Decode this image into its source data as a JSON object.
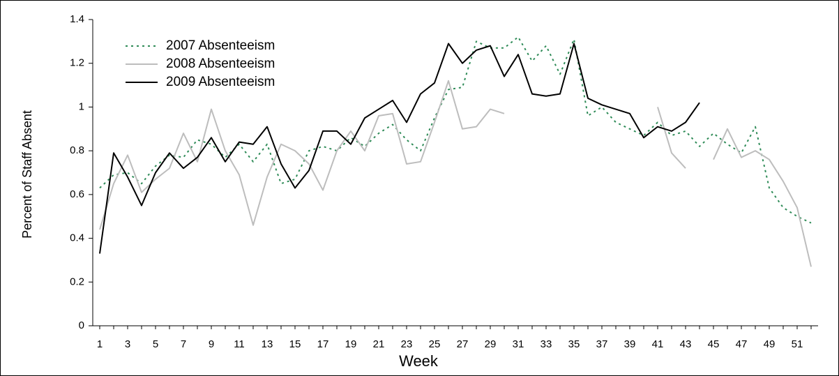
{
  "chart_data": {
    "type": "line",
    "xlabel": "Week",
    "ylabel": "Percent of Staff Absent",
    "x": [
      1,
      2,
      3,
      4,
      5,
      6,
      7,
      8,
      9,
      10,
      11,
      12,
      13,
      14,
      15,
      16,
      17,
      18,
      19,
      20,
      21,
      22,
      23,
      24,
      25,
      26,
      27,
      28,
      29,
      30,
      31,
      32,
      33,
      34,
      35,
      36,
      37,
      38,
      39,
      40,
      41,
      42,
      43,
      44,
      45,
      46,
      47,
      48,
      49,
      50,
      51,
      52
    ],
    "xlim": [
      0.5,
      52.5
    ],
    "xticks": [
      1,
      3,
      5,
      7,
      9,
      11,
      13,
      15,
      17,
      19,
      21,
      23,
      25,
      27,
      29,
      31,
      33,
      35,
      37,
      39,
      41,
      43,
      45,
      47,
      49,
      51
    ],
    "ylim": [
      0,
      1.4
    ],
    "yticks": [
      0,
      0.2,
      0.4,
      0.6,
      0.8,
      1,
      1.2,
      1.4
    ],
    "legend": "upper left",
    "series": [
      {
        "name": "2007 Absenteeism",
        "color": "#2e8b57",
        "style": "dotted",
        "values": [
          0.63,
          0.69,
          0.7,
          0.65,
          0.73,
          0.78,
          0.77,
          0.85,
          0.83,
          0.77,
          0.83,
          0.75,
          0.83,
          0.65,
          0.67,
          0.8,
          0.82,
          0.8,
          0.86,
          0.82,
          0.88,
          0.92,
          0.85,
          0.8,
          0.95,
          1.08,
          1.09,
          1.3,
          1.27,
          1.27,
          1.32,
          1.21,
          1.28,
          1.15,
          1.31,
          0.96,
          1.0,
          0.93,
          0.9,
          0.87,
          0.93,
          0.87,
          0.89,
          0.82,
          0.88,
          0.83,
          0.79,
          0.91,
          0.63,
          0.54,
          0.5,
          0.47
        ]
      },
      {
        "name": "2008 Absenteeism",
        "color": "#bdbdbd",
        "style": "solid",
        "values": [
          0.44,
          0.65,
          0.78,
          0.61,
          0.67,
          0.72,
          0.88,
          0.75,
          0.99,
          0.8,
          0.69,
          0.46,
          0.68,
          0.83,
          0.8,
          0.74,
          0.62,
          0.8,
          0.89,
          0.8,
          0.96,
          0.97,
          0.74,
          0.75,
          0.93,
          1.12,
          0.9,
          0.91,
          0.99,
          0.97,
          null,
          null,
          null,
          null,
          null,
          null,
          null,
          null,
          null,
          null,
          1.0,
          0.79,
          0.72,
          null,
          0.76,
          0.9,
          0.77,
          0.8,
          0.76,
          0.66,
          0.54,
          0.27
        ]
      },
      {
        "name": "2009 Absenteeism",
        "color": "#000000",
        "style": "solid",
        "values": [
          0.33,
          0.79,
          0.68,
          0.55,
          0.7,
          0.79,
          0.72,
          0.77,
          0.86,
          0.75,
          0.84,
          0.83,
          0.91,
          0.74,
          0.63,
          0.71,
          0.89,
          0.89,
          0.83,
          0.95,
          0.99,
          1.03,
          0.93,
          1.06,
          1.11,
          1.29,
          1.2,
          1.26,
          1.28,
          1.14,
          1.24,
          1.06,
          1.05,
          1.06,
          1.29,
          1.04,
          1.01,
          0.99,
          0.97,
          0.86,
          0.91,
          0.89,
          0.93,
          1.02,
          null,
          null,
          null,
          null,
          null,
          null,
          null,
          null
        ]
      }
    ]
  }
}
